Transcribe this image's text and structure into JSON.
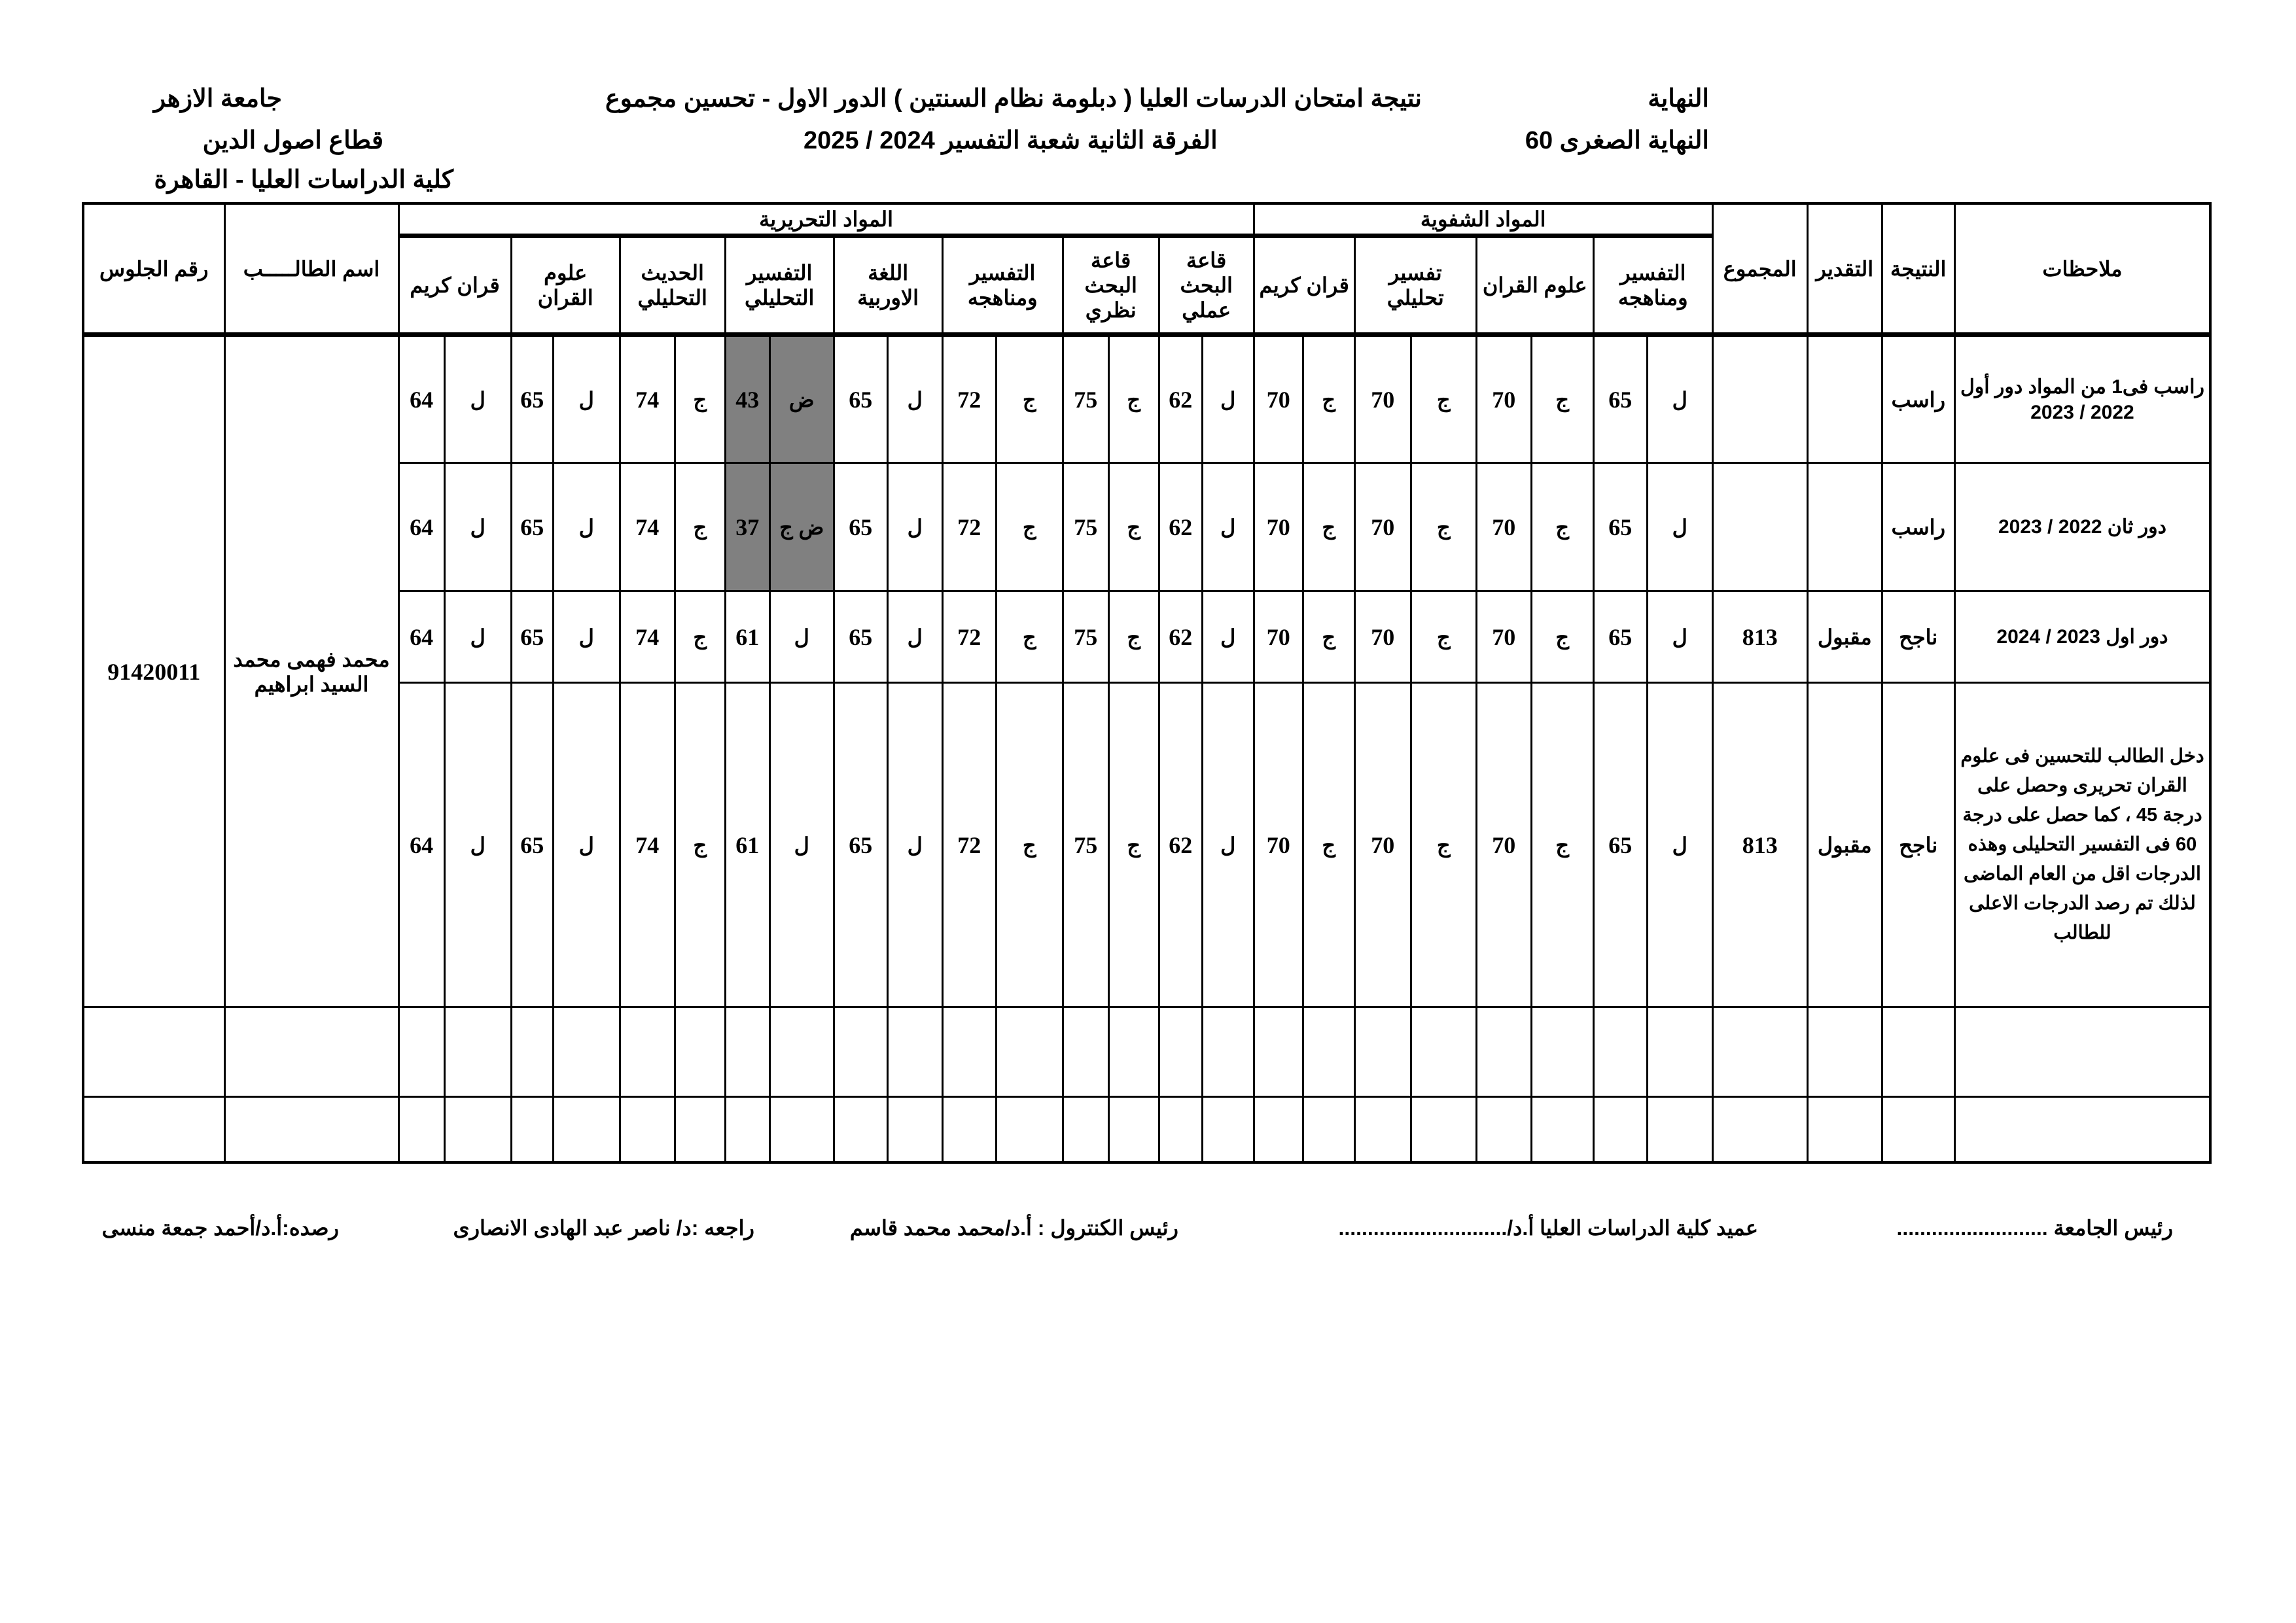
{
  "header": {
    "right_line1": "النهاية",
    "right_line2": "النهاية الصغرى 60",
    "title_line1": "نتيجة امتحان الدرسات العليا ( دبلومة نظام السنتين ) الدور الاول - تحسين مجموع",
    "title_line2": "الفرقة الثانية شعبة التفسير 2024 / 2025",
    "left_line1": "جامعة الازهر",
    "left_line2": "قطاع اصول الدين",
    "left_line3": "كلية الدراسات العليا - القاهرة"
  },
  "table": {
    "headers": {
      "notes": "ملاحظات",
      "result": "النتيجة",
      "grade": "التقدير",
      "total": "المجموع",
      "oral_group": "المواد الشفوية",
      "written_group": "المواد التحريرية",
      "student_name": "اسم الطالـــــب",
      "seat_number": "رقم الجلوس",
      "oral_subjects": [
        "التفسير ومناهجه",
        "علوم القران",
        "تفسير تحليلي",
        "قران كريم"
      ],
      "written_subjects": [
        "قاعة البحث عملي",
        "قاعة البحث نظري",
        "التفسير ومناهجه",
        "اللغة الاوربية",
        "التفسير التحليلي",
        "الحديث التحليلي",
        "علوم القران",
        "قران كريم"
      ]
    },
    "student": {
      "seat_number": "91420011",
      "name": "محمد فهمى محمد السيد ابراهيم"
    },
    "rows": [
      {
        "notes": "راسب فى1 من المواد دور أول 2022 / 2023",
        "result": "راسب",
        "grade": "",
        "total": "",
        "oral": [
          [
            "ل",
            "65"
          ],
          [
            "ج",
            "70"
          ],
          [
            "ج",
            "70"
          ],
          [
            "ج",
            "70"
          ]
        ],
        "written": [
          [
            "ل",
            "62"
          ],
          [
            "ج",
            "75"
          ],
          [
            "ج",
            "72"
          ],
          [
            "ل",
            "65"
          ],
          [
            "ض",
            "43"
          ],
          [
            "ج",
            "74"
          ],
          [
            "ل",
            "65"
          ],
          [
            "ل",
            "64"
          ]
        ],
        "highlight_written": [
          4
        ]
      },
      {
        "notes": "دور ثان 2022 / 2023",
        "result": "راسب",
        "grade": "",
        "total": "",
        "oral": [
          [
            "ل",
            "65"
          ],
          [
            "ج",
            "70"
          ],
          [
            "ج",
            "70"
          ],
          [
            "ج",
            "70"
          ]
        ],
        "written": [
          [
            "ل",
            "62"
          ],
          [
            "ج",
            "75"
          ],
          [
            "ج",
            "72"
          ],
          [
            "ل",
            "65"
          ],
          [
            "ض ج",
            "37"
          ],
          [
            "ج",
            "74"
          ],
          [
            "ل",
            "65"
          ],
          [
            "ل",
            "64"
          ]
        ],
        "highlight_written": [
          4
        ]
      },
      {
        "notes": "دور اول 2023 / 2024",
        "result": "ناجح",
        "grade": "مقبول",
        "total": "813",
        "oral": [
          [
            "ل",
            "65"
          ],
          [
            "ج",
            "70"
          ],
          [
            "ج",
            "70"
          ],
          [
            "ج",
            "70"
          ]
        ],
        "written": [
          [
            "ل",
            "62"
          ],
          [
            "ج",
            "75"
          ],
          [
            "ج",
            "72"
          ],
          [
            "ل",
            "65"
          ],
          [
            "ل",
            "61"
          ],
          [
            "ج",
            "74"
          ],
          [
            "ل",
            "65"
          ],
          [
            "ل",
            "64"
          ]
        ],
        "highlight_written": []
      },
      {
        "notes": "دخل الطالب للتحسين فى علوم القران تحريرى وحصل على درجة 45 ، كما حصل على درجة 60 فى التفسير التحليلى وهذه الدرجات اقل من العام الماضى لذلك تم رصد الدرجات الاعلى للطالب",
        "result": "ناجح",
        "grade": "مقبول",
        "total": "813",
        "oral": [
          [
            "ل",
            "65"
          ],
          [
            "ج",
            "70"
          ],
          [
            "ج",
            "70"
          ],
          [
            "ج",
            "70"
          ]
        ],
        "written": [
          [
            "ل",
            "62"
          ],
          [
            "ج",
            "75"
          ],
          [
            "ج",
            "72"
          ],
          [
            "ل",
            "65"
          ],
          [
            "ل",
            "61"
          ],
          [
            "ج",
            "74"
          ],
          [
            "ل",
            "65"
          ],
          [
            "ل",
            "64"
          ]
        ],
        "highlight_written": []
      }
    ],
    "highlight_color": "#808080"
  },
  "footer": {
    "university_president": "رئيس الجامعة ..........................",
    "dean": "عميد كلية الدراسات العليا أ.د/.............................",
    "control_head": "رئيس الكنترول : أ.د/محمد محمد قاسم",
    "reviewed_by": "راجعه :د/ ناصر عبد الهادى الانصارى",
    "recorded_by": "رصده:أ.د/أحمد جمعة منسى"
  }
}
